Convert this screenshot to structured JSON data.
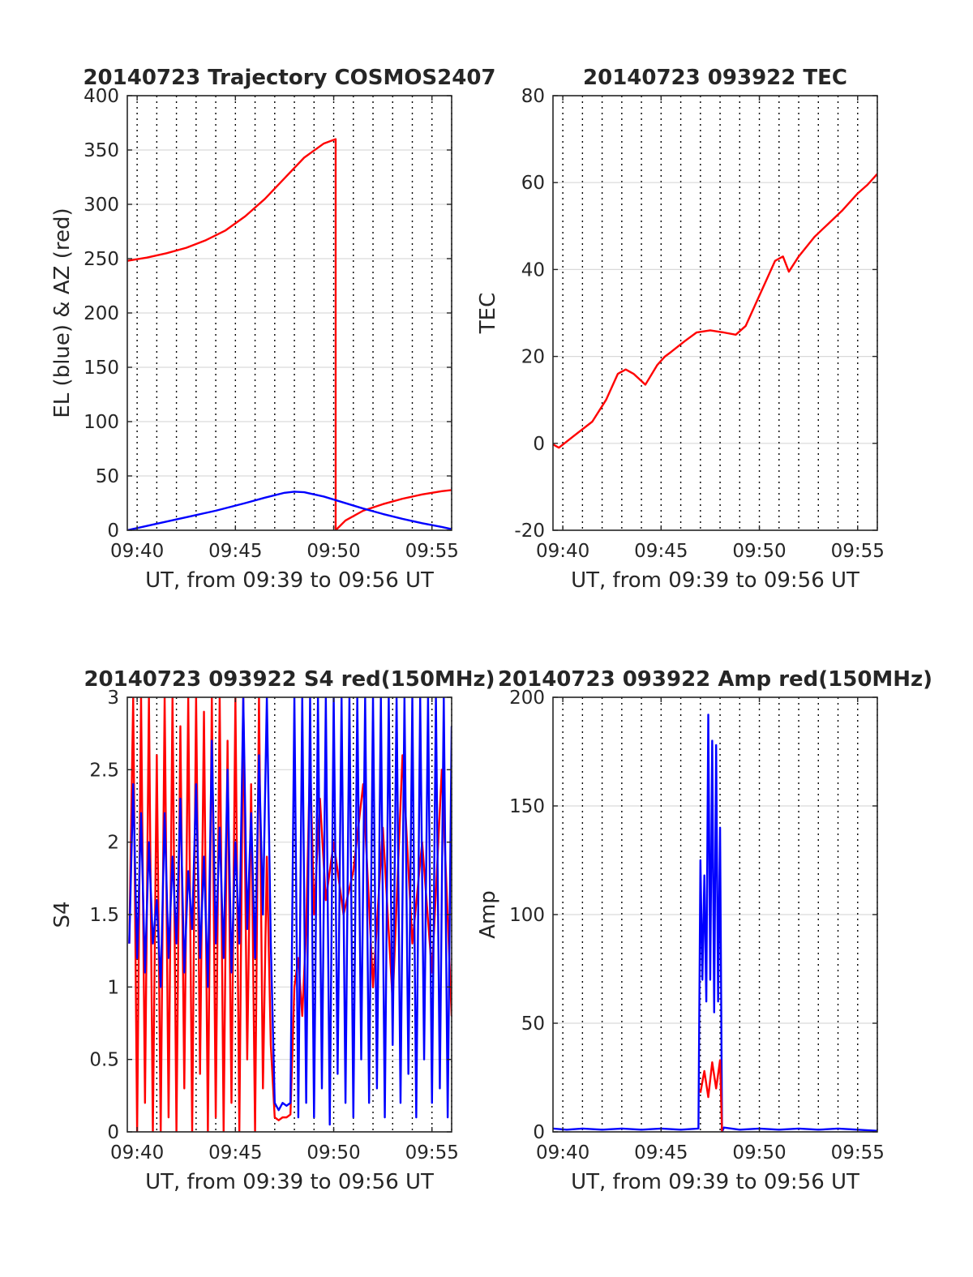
{
  "chart_data": [
    {
      "type": "line",
      "title": "20140723 Trajectory COSMOS2407",
      "xlabel": "UT, from 09:39 to 09:56 UT",
      "ylabel": "EL (blue) & AZ (red)",
      "xlim": [
        39.5,
        56
      ],
      "ylim": [
        0,
        400
      ],
      "yticks": [
        0,
        50,
        100,
        150,
        200,
        250,
        300,
        350,
        400
      ],
      "xticks": [
        40,
        45,
        50,
        55
      ],
      "xtick_labels": [
        "09:40",
        "09:45",
        "09:50",
        "09:55"
      ],
      "grid": true,
      "series": [
        {
          "color": "#ff0000",
          "x": [
            39.5,
            40.5,
            41.5,
            42.5,
            43.5,
            44.5,
            45.5,
            46.5,
            47.5,
            48.5,
            49.5,
            50.1,
            50.1,
            50.6,
            51.5,
            52.5,
            53.5,
            54.5,
            55.5,
            56
          ],
          "y": [
            248,
            251,
            255,
            260,
            267,
            276,
            289,
            305,
            324,
            343,
            356,
            360,
            0,
            9,
            18,
            24,
            29,
            33,
            36,
            37
          ]
        },
        {
          "color": "#0000ff",
          "x": [
            39.5,
            41,
            42.5,
            44,
            45.5,
            46.5,
            47.5,
            48,
            48.5,
            49.5,
            50.5,
            51.5,
            52.5,
            53.5,
            54.5,
            55.5,
            56
          ],
          "y": [
            0,
            6,
            12,
            18,
            25,
            30,
            34.5,
            35.5,
            35,
            31,
            25.5,
            20,
            15,
            10.5,
            6.5,
            3,
            1
          ]
        }
      ]
    },
    {
      "type": "line",
      "title": "20140723 093922 TEC",
      "xlabel": "UT, from 09:39 to 09:56 UT",
      "ylabel": "TEC",
      "xlim": [
        39.5,
        56
      ],
      "ylim": [
        -20,
        80
      ],
      "yticks": [
        -20,
        0,
        20,
        40,
        60,
        80
      ],
      "xticks": [
        40,
        45,
        50,
        55
      ],
      "xtick_labels": [
        "09:40",
        "09:45",
        "09:50",
        "09:55"
      ],
      "grid": true,
      "series": [
        {
          "color": "#ff0000",
          "x": [
            39.4,
            39.8,
            40.5,
            41.5,
            42.2,
            42.8,
            43.2,
            43.6,
            44.2,
            44.8,
            45.2,
            45.5,
            46.2,
            46.8,
            47.5,
            48.2,
            48.8,
            49.3,
            49.8,
            50.3,
            50.8,
            51.2,
            51.5,
            52,
            52.8,
            53.5,
            54.2,
            55,
            55.5,
            56
          ],
          "y": [
            0,
            -1,
            1.5,
            5,
            10,
            16,
            17,
            16,
            13.5,
            18,
            20,
            21,
            23.5,
            25.5,
            26,
            25.5,
            25,
            27,
            32,
            37,
            42,
            43,
            39.5,
            43,
            47.5,
            50.5,
            53.5,
            57.5,
            59.5,
            62
          ]
        }
      ]
    },
    {
      "type": "line",
      "title": "20140723 093922 S4 red(150MHz)",
      "xlabel": "UT, from 09:39 to 09:56 UT",
      "ylabel": "S4",
      "xlim": [
        39.5,
        56
      ],
      "ylim": [
        0,
        3
      ],
      "yticks": [
        0,
        0.5,
        1,
        1.5,
        2,
        2.5,
        3
      ],
      "ytick_labels": [
        "0",
        "0.5",
        "1",
        "1.5",
        "2",
        "2.5",
        "3"
      ],
      "xticks": [
        40,
        45,
        50,
        55
      ],
      "xtick_labels": [
        "09:40",
        "09:45",
        "09:50",
        "09:55"
      ],
      "grid": true,
      "series": [
        {
          "color": "#ff0000",
          "x": [
            39.6,
            39.8,
            40.0,
            40.2,
            40.4,
            40.6,
            40.8,
            41.0,
            41.2,
            41.4,
            41.6,
            41.8,
            42.0,
            42.2,
            42.4,
            42.6,
            42.8,
            43.0,
            43.2,
            43.4,
            43.6,
            43.8,
            44.0,
            44.2,
            44.4,
            44.6,
            44.8,
            45.0,
            45.2,
            45.4,
            45.6,
            45.8,
            46.0,
            46.2,
            46.4,
            46.6,
            46.8,
            47.0,
            47.2,
            47.4,
            47.6,
            47.8,
            48.0,
            48.2,
            48.4,
            48.6,
            48.8,
            49.0,
            49.3,
            49.6,
            50.0,
            50.5,
            51.0,
            51.5,
            52.0,
            52.5,
            53.0,
            53.5,
            54.0,
            54.5,
            55.0,
            55.5,
            56.0
          ],
          "y": [
            1.3,
            3,
            0,
            3,
            0.2,
            3,
            0,
            2.6,
            0,
            3,
            0.1,
            3,
            0,
            2.8,
            0.3,
            3,
            0,
            3,
            0.4,
            2.9,
            0,
            3,
            0.1,
            3,
            0,
            2.7,
            0.2,
            3,
            0,
            3,
            0.5,
            2.4,
            0,
            3,
            0.3,
            1.9,
            0.6,
            0.1,
            0.08,
            0.1,
            0.1,
            0.12,
            1.0,
            1.2,
            0.8,
            1.4,
            2.6,
            1.5,
            2.3,
            1.6,
            2.0,
            1.5,
            1.8,
            2.4,
            1.0,
            2.1,
            0.9,
            2.6,
            1.3,
            2.0,
            1.1,
            2.5,
            0.8
          ]
        },
        {
          "color": "#0000ff",
          "x": [
            39.6,
            39.8,
            40.0,
            40.2,
            40.4,
            40.6,
            40.8,
            41.0,
            41.2,
            41.4,
            41.6,
            41.8,
            42.0,
            42.2,
            42.4,
            42.6,
            42.8,
            43.0,
            43.2,
            43.4,
            43.6,
            43.8,
            44.0,
            44.2,
            44.4,
            44.6,
            44.8,
            45.0,
            45.2,
            45.4,
            45.6,
            45.8,
            46.0,
            46.2,
            46.4,
            46.6,
            46.8,
            47.0,
            47.2,
            47.4,
            47.6,
            47.8,
            48.0,
            48.2,
            48.4,
            48.6,
            48.8,
            49.0,
            49.2,
            49.4,
            49.6,
            49.8,
            50.0,
            50.2,
            50.4,
            50.6,
            50.8,
            51.0,
            51.2,
            51.4,
            51.6,
            51.8,
            52.0,
            52.2,
            52.4,
            52.6,
            52.8,
            53.0,
            53.2,
            53.4,
            53.6,
            53.8,
            54.0,
            54.2,
            54.4,
            54.6,
            54.8,
            55.0,
            55.2,
            55.4,
            55.6,
            55.8,
            56.0
          ],
          "y": [
            1.3,
            2.4,
            1.2,
            2.2,
            1.1,
            2.0,
            1.3,
            1.6,
            1.0,
            2.2,
            1.2,
            1.9,
            1.3,
            2.3,
            1.1,
            1.8,
            1.4,
            2.4,
            1.2,
            1.9,
            1.0,
            2.7,
            1.3,
            2.1,
            1.2,
            2.5,
            1.1,
            2.0,
            1.3,
            3,
            1.4,
            2.2,
            1.2,
            2.6,
            1.5,
            3,
            1.3,
            0.2,
            0.15,
            0.2,
            0.18,
            0.2,
            3,
            0.1,
            3,
            0.2,
            3,
            0.1,
            3,
            0.3,
            3,
            0.05,
            3,
            0.4,
            3,
            0.2,
            3,
            0.1,
            3,
            0.5,
            3,
            0.2,
            3,
            0.3,
            3,
            0.1,
            3,
            0.6,
            3,
            0.2,
            3,
            0.4,
            3,
            0.1,
            3,
            0.5,
            3,
            0.2,
            3,
            0.3,
            3,
            0.1,
            2.8
          ]
        }
      ]
    },
    {
      "type": "line",
      "title": "20140723 093922 Amp red(150MHz)",
      "xlabel": "UT, from 09:39 to 09:56 UT",
      "ylabel": "Amp",
      "xlim": [
        39.5,
        56
      ],
      "ylim": [
        0,
        200
      ],
      "yticks": [
        0,
        50,
        100,
        150,
        200
      ],
      "xticks": [
        40,
        45,
        50,
        55
      ],
      "xtick_labels": [
        "09:40",
        "09:45",
        "09:50",
        "09:55"
      ],
      "grid": true,
      "series": [
        {
          "color": "#0000ff",
          "x": [
            39.5,
            40.2,
            41.0,
            42.0,
            43.0,
            44.0,
            45.0,
            46.0,
            46.9,
            47.0,
            47.1,
            47.2,
            47.3,
            47.4,
            47.5,
            47.6,
            47.7,
            47.8,
            47.9,
            48.0,
            48.1,
            48.2,
            49.0,
            50.0,
            51.0,
            52.0,
            53.0,
            54.0,
            55.0,
            56.0
          ],
          "y": [
            1.5,
            1,
            1.5,
            1,
            1.5,
            1,
            1.5,
            1,
            1.5,
            125,
            70,
            118,
            60,
            192,
            70,
            180,
            55,
            178,
            60,
            140,
            0,
            2,
            1,
            1.5,
            1,
            1.5,
            1,
            1.5,
            1,
            0.5
          ]
        },
        {
          "color": "#ff0000",
          "x": [
            47.0,
            47.2,
            47.4,
            47.6,
            47.8,
            48.0,
            48.1
          ],
          "y": [
            18,
            28,
            16,
            32,
            20,
            33,
            0
          ]
        }
      ]
    }
  ]
}
